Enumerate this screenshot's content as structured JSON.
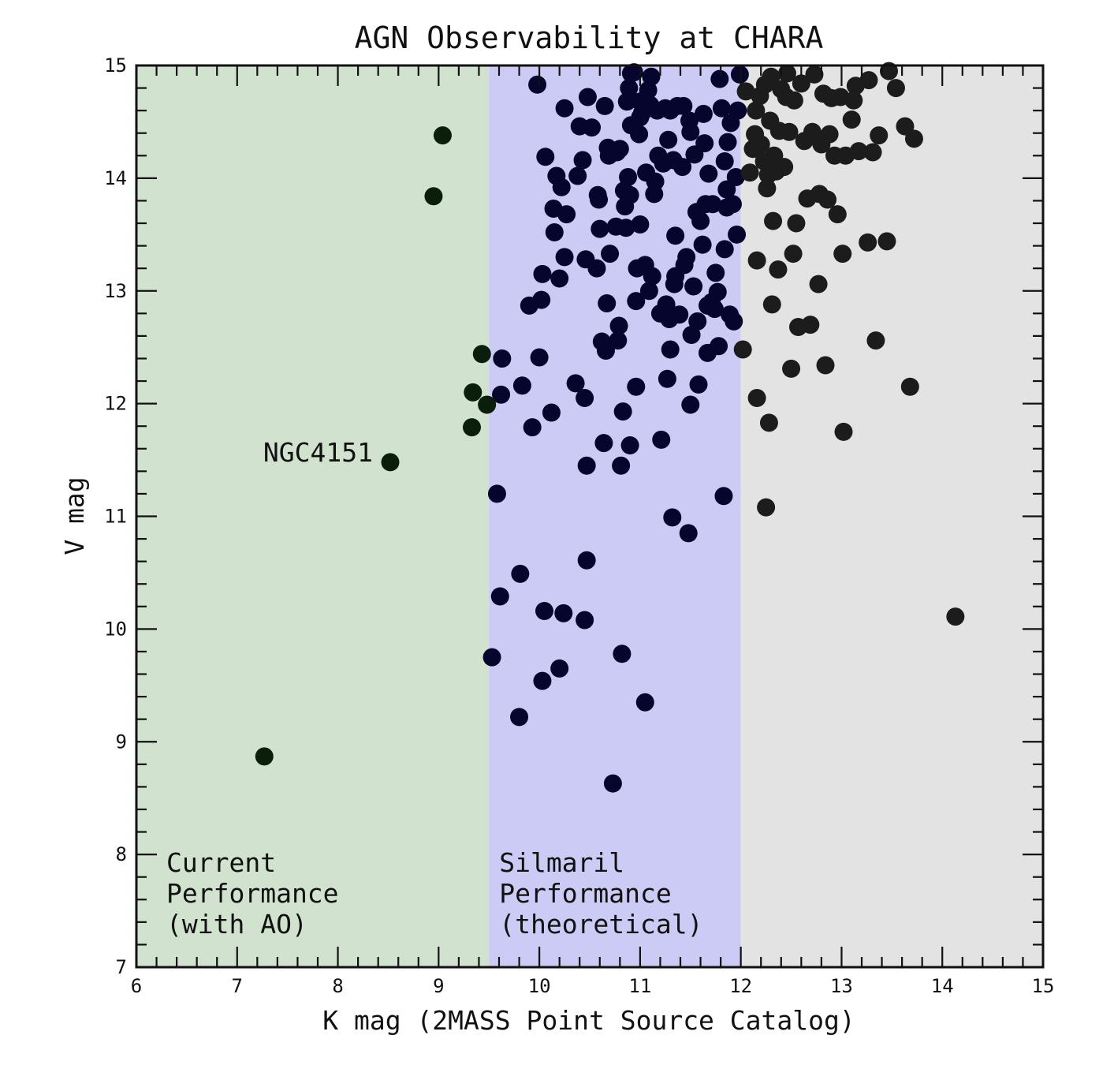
{
  "chart_data": {
    "type": "scatter",
    "title": "AGN Observability at CHARA",
    "xlabel": "K mag (2MASS Point Source Catalog)",
    "ylabel": "V mag",
    "xlim": [
      6,
      15
    ],
    "ylim": [
      7,
      15
    ],
    "xticks": [
      6,
      7,
      8,
      9,
      10,
      11,
      12,
      13,
      14,
      15
    ],
    "yticks": [
      7,
      8,
      9,
      10,
      11,
      12,
      13,
      14,
      15
    ],
    "grid": false,
    "regions": [
      {
        "name": "current",
        "x_from": 6,
        "x_to": 9.5,
        "color": "#d1e3cf",
        "label_lines": [
          "Current",
          "Performance",
          "(with AO)"
        ]
      },
      {
        "name": "silmaril",
        "x_from": 9.5,
        "x_to": 12,
        "color": "#cbcbf5",
        "label_lines": [
          "Silmaril",
          "Performance",
          "(theoretical)"
        ]
      },
      {
        "name": "beyond",
        "x_from": 12,
        "x_to": 15,
        "color": "#e3e3e3",
        "label_lines": []
      }
    ],
    "annotations": [
      {
        "text": "NGC4151",
        "x": 8.52,
        "y": 11.48
      }
    ],
    "series": [
      {
        "marker_color": "#0b0b25",
        "points": [
          [
            7.27,
            8.87
          ],
          [
            8.52,
            11.48
          ],
          [
            8.95,
            13.84
          ],
          [
            9.04,
            14.38
          ],
          [
            9.33,
            11.79
          ],
          [
            9.34,
            12.1
          ],
          [
            9.43,
            12.44
          ],
          [
            9.48,
            11.99
          ],
          [
            9.53,
            9.75
          ],
          [
            9.58,
            11.2
          ],
          [
            9.61,
            10.29
          ],
          [
            9.62,
            12.08
          ],
          [
            9.63,
            12.4
          ],
          [
            9.8,
            9.22
          ],
          [
            9.81,
            10.49
          ],
          [
            9.83,
            12.16
          ],
          [
            9.9,
            12.87
          ],
          [
            9.93,
            11.79
          ],
          [
            9.98,
            14.83
          ],
          [
            10.0,
            12.41
          ],
          [
            10.02,
            12.92
          ],
          [
            10.03,
            9.54
          ],
          [
            10.03,
            13.15
          ],
          [
            10.05,
            10.16
          ],
          [
            10.06,
            14.19
          ],
          [
            10.12,
            11.92
          ],
          [
            10.14,
            13.73
          ],
          [
            10.15,
            13.52
          ],
          [
            10.17,
            14.02
          ],
          [
            10.2,
            9.65
          ],
          [
            10.2,
            13.11
          ],
          [
            10.22,
            13.92
          ],
          [
            10.24,
            10.14
          ],
          [
            10.25,
            13.3
          ],
          [
            10.25,
            14.62
          ],
          [
            10.27,
            13.68
          ],
          [
            10.36,
            12.18
          ],
          [
            10.38,
            14.02
          ],
          [
            10.4,
            14.46
          ],
          [
            10.43,
            14.16
          ],
          [
            10.45,
            10.08
          ],
          [
            10.45,
            12.05
          ],
          [
            10.46,
            13.28
          ],
          [
            10.47,
            10.61
          ],
          [
            10.47,
            11.45
          ],
          [
            10.48,
            14.72
          ],
          [
            10.52,
            14.45
          ],
          [
            10.57,
            13.2
          ],
          [
            10.58,
            13.85
          ],
          [
            10.59,
            13.81
          ],
          [
            10.6,
            13.55
          ],
          [
            10.62,
            12.55
          ],
          [
            10.64,
            11.65
          ],
          [
            10.65,
            14.64
          ],
          [
            10.66,
            12.47
          ],
          [
            10.67,
            12.89
          ],
          [
            10.68,
            14.27
          ],
          [
            10.69,
            14.2
          ],
          [
            10.7,
            13.33
          ],
          [
            10.73,
            8.63
          ],
          [
            10.76,
            13.57
          ],
          [
            10.77,
            14.23
          ],
          [
            10.78,
            12.56
          ],
          [
            10.79,
            12.69
          ],
          [
            10.8,
            14.26
          ],
          [
            10.81,
            11.45
          ],
          [
            10.82,
            9.78
          ],
          [
            10.83,
            11.93
          ],
          [
            10.84,
            13.89
          ],
          [
            10.85,
            13.75
          ],
          [
            10.86,
            13.56
          ],
          [
            10.87,
            14.68
          ],
          [
            10.88,
            14.01
          ],
          [
            10.89,
            14.8
          ],
          [
            10.9,
            11.63
          ],
          [
            10.9,
            13.85
          ],
          [
            10.91,
            14.47
          ],
          [
            10.91,
            14.93
          ],
          [
            10.94,
            14.94
          ],
          [
            10.96,
            12.15
          ],
          [
            10.96,
            12.91
          ],
          [
            10.97,
            13.2
          ],
          [
            10.99,
            14.39
          ],
          [
            11.0,
            14.68
          ],
          [
            11.0,
            13.59
          ],
          [
            11.0,
            14.54
          ],
          [
            11.02,
            14.58
          ],
          [
            11.05,
            9.35
          ],
          [
            11.05,
            13.23
          ],
          [
            11.06,
            14.05
          ],
          [
            11.08,
            14.78
          ],
          [
            11.09,
            13.0
          ],
          [
            11.1,
            14.65
          ],
          [
            11.11,
            14.9
          ],
          [
            11.12,
            13.13
          ],
          [
            11.14,
            13.86
          ],
          [
            11.15,
            13.97
          ],
          [
            11.17,
            14.6
          ],
          [
            11.18,
            14.2
          ],
          [
            11.2,
            12.8
          ],
          [
            11.21,
            11.68
          ],
          [
            11.23,
            14.13
          ],
          [
            11.25,
            14.62
          ],
          [
            11.26,
            12.88
          ],
          [
            11.27,
            12.22
          ],
          [
            11.28,
            14.34
          ],
          [
            11.29,
            12.75
          ],
          [
            11.3,
            12.48
          ],
          [
            11.3,
            14.6
          ],
          [
            11.32,
            10.99
          ],
          [
            11.33,
            14.16
          ],
          [
            11.34,
            13.06
          ],
          [
            11.35,
            13.49
          ],
          [
            11.35,
            13.13
          ],
          [
            11.37,
            14.64
          ],
          [
            11.39,
            12.79
          ],
          [
            11.42,
            14.1
          ],
          [
            11.43,
            14.64
          ],
          [
            11.44,
            13.23
          ],
          [
            11.46,
            13.3
          ],
          [
            11.48,
            10.85
          ],
          [
            11.49,
            14.51
          ],
          [
            11.5,
            11.99
          ],
          [
            11.5,
            14.41
          ],
          [
            11.51,
            12.61
          ],
          [
            11.53,
            13.04
          ],
          [
            11.54,
            14.21
          ],
          [
            11.56,
            13.7
          ],
          [
            11.57,
            12.73
          ],
          [
            11.58,
            12.17
          ],
          [
            11.6,
            13.62
          ],
          [
            11.62,
            13.41
          ],
          [
            11.63,
            14.57
          ],
          [
            11.64,
            14.31
          ],
          [
            11.65,
            13.77
          ],
          [
            11.67,
            12.45
          ],
          [
            11.67,
            12.87
          ],
          [
            11.68,
            14.04
          ],
          [
            11.71,
            12.9
          ],
          [
            11.72,
            13.77
          ],
          [
            11.74,
            12.84
          ],
          [
            11.75,
            13.16
          ],
          [
            11.77,
            12.99
          ],
          [
            11.78,
            12.51
          ],
          [
            11.79,
            14.88
          ],
          [
            11.81,
            14.62
          ],
          [
            11.83,
            11.18
          ],
          [
            11.84,
            13.37
          ],
          [
            11.84,
            14.15
          ],
          [
            11.86,
            13.74
          ],
          [
            11.86,
            13.9
          ],
          [
            11.87,
            14.32
          ],
          [
            11.89,
            12.79
          ],
          [
            11.9,
            14.49
          ],
          [
            11.92,
            13.77
          ],
          [
            11.93,
            12.73
          ],
          [
            11.95,
            14.01
          ],
          [
            11.96,
            13.5
          ],
          [
            11.97,
            14.6
          ],
          [
            11.99,
            14.92
          ],
          [
            12.02,
            12.48
          ],
          [
            12.05,
            14.77
          ],
          [
            12.09,
            14.05
          ],
          [
            12.12,
            14.26
          ],
          [
            12.14,
            14.39
          ],
          [
            12.15,
            14.6
          ],
          [
            12.16,
            12.05
          ],
          [
            12.16,
            13.27
          ],
          [
            12.19,
            14.73
          ],
          [
            12.2,
            14.3
          ],
          [
            12.23,
            14.15
          ],
          [
            12.24,
            14.83
          ],
          [
            12.25,
            11.08
          ],
          [
            12.26,
            13.91
          ],
          [
            12.27,
            14.03
          ],
          [
            12.28,
            11.83
          ],
          [
            12.29,
            14.51
          ],
          [
            12.3,
            14.9
          ],
          [
            12.31,
            12.88
          ],
          [
            12.32,
            13.62
          ],
          [
            12.33,
            14.2
          ],
          [
            12.35,
            14.06
          ],
          [
            12.37,
            13.19
          ],
          [
            12.38,
            14.42
          ],
          [
            12.4,
            14.79
          ],
          [
            12.43,
            14.1
          ],
          [
            12.45,
            14.72
          ],
          [
            12.46,
            14.93
          ],
          [
            12.48,
            14.41
          ],
          [
            12.5,
            12.31
          ],
          [
            12.52,
            13.33
          ],
          [
            12.53,
            14.69
          ],
          [
            12.55,
            13.6
          ],
          [
            12.57,
            12.68
          ],
          [
            12.6,
            14.84
          ],
          [
            12.63,
            14.33
          ],
          [
            12.66,
            13.82
          ],
          [
            12.69,
            12.7
          ],
          [
            12.71,
            14.41
          ],
          [
            12.73,
            14.92
          ],
          [
            12.77,
            13.06
          ],
          [
            12.78,
            13.86
          ],
          [
            12.8,
            14.3
          ],
          [
            12.82,
            14.75
          ],
          [
            12.84,
            12.34
          ],
          [
            12.86,
            13.81
          ],
          [
            12.88,
            14.39
          ],
          [
            12.9,
            14.71
          ],
          [
            12.93,
            14.2
          ],
          [
            12.96,
            13.68
          ],
          [
            12.99,
            14.72
          ],
          [
            13.01,
            13.33
          ],
          [
            13.02,
            11.75
          ],
          [
            13.04,
            14.2
          ],
          [
            13.1,
            14.52
          ],
          [
            13.12,
            14.69
          ],
          [
            13.14,
            14.82
          ],
          [
            13.17,
            14.24
          ],
          [
            13.26,
            13.43
          ],
          [
            13.27,
            14.87
          ],
          [
            13.31,
            14.23
          ],
          [
            13.34,
            12.56
          ],
          [
            13.37,
            14.38
          ],
          [
            13.45,
            13.44
          ],
          [
            13.47,
            14.95
          ],
          [
            13.54,
            14.8
          ],
          [
            13.63,
            14.46
          ],
          [
            13.68,
            12.15
          ],
          [
            13.72,
            14.35
          ],
          [
            14.13,
            10.11
          ]
        ]
      }
    ]
  }
}
